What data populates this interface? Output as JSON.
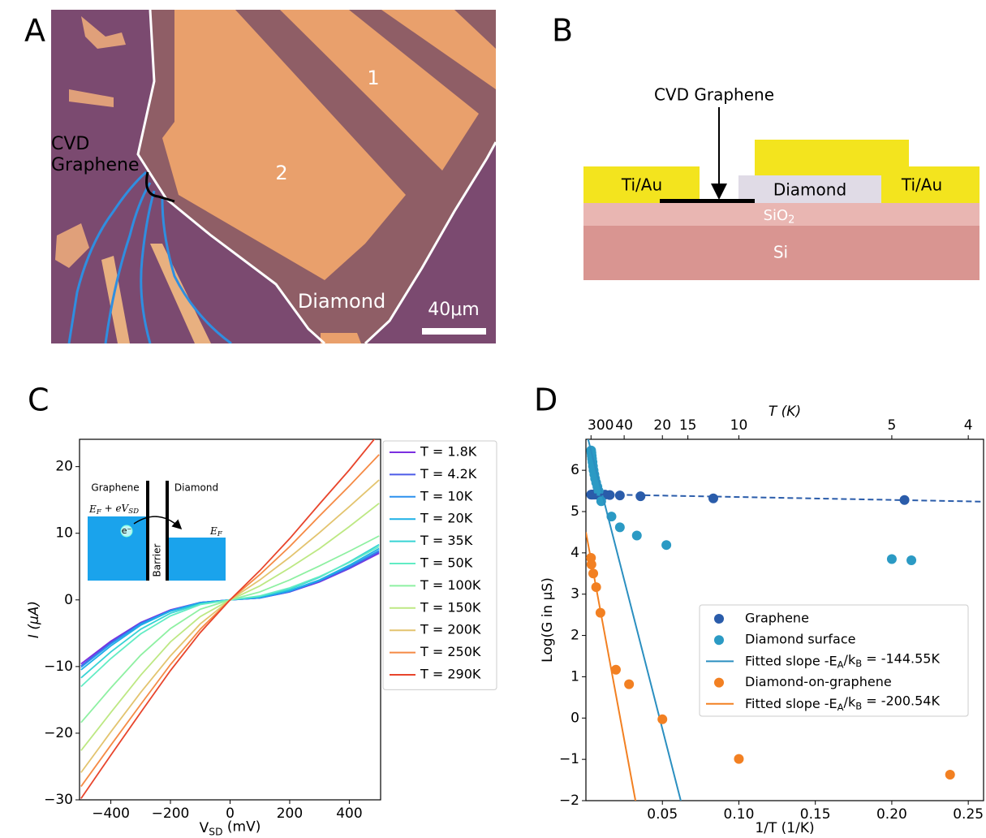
{
  "panel_a": {
    "label": "A",
    "annotation": [
      "CVD",
      "Graphene"
    ],
    "regions": [
      "1",
      "2"
    ],
    "material": "Diamond",
    "scale_bar": "40μm"
  },
  "panel_b": {
    "label": "B",
    "callout": "CVD Graphene",
    "contact_left": "Ti/Au",
    "material": "Diamond",
    "contact_right": "Ti/Au",
    "oxide": [
      "SiO",
      "2"
    ],
    "substrate": "Si"
  },
  "chart_data": [
    {
      "type": "line",
      "label": "C",
      "xlabel": [
        "V",
        "SD",
        " (mV)"
      ],
      "ylabel": "I (μA)",
      "x": [
        -500,
        -400,
        -300,
        -200,
        -100,
        0,
        100,
        200,
        300,
        400,
        500
      ],
      "xlim": [
        -505,
        505
      ],
      "ylim": [
        -30,
        24.1
      ],
      "xticks": [
        {
          "value": -400,
          "label": "−400"
        },
        {
          "value": -200,
          "label": "−200"
        },
        0,
        200,
        400
      ],
      "yticks": [
        {
          "value": -30,
          "label": "−30"
        },
        {
          "value": -20,
          "label": "−20"
        },
        {
          "value": -10,
          "label": "−10"
        },
        0,
        10,
        20
      ],
      "legend": "outside-right",
      "inset": {
        "graphene": "Graphene",
        "diamond": "Diamond",
        "fermi_shifted": [
          "E",
          "F",
          " + eV",
          "SD"
        ],
        "electron": "e⁻",
        "barrier": "Barrier",
        "fermi": [
          "E",
          "F"
        ]
      },
      "series": [
        {
          "name": "T = 1.8K",
          "color": "#7b2fe0",
          "values": [
            -9.6,
            -6.2,
            -3.4,
            -1.5,
            -0.4,
            0,
            0.3,
            1.2,
            2.7,
            4.7,
            7.0
          ]
        },
        {
          "name": "T = 4.2K",
          "color": "#4c5be8",
          "values": [
            -9.9,
            -6.4,
            -3.5,
            -1.6,
            -0.4,
            0,
            0.3,
            1.2,
            2.8,
            4.8,
            7.2
          ]
        },
        {
          "name": "T = 10K",
          "color": "#2c90ee",
          "values": [
            -10.1,
            -6.6,
            -3.6,
            -1.6,
            -0.4,
            0,
            0.3,
            1.3,
            2.9,
            5.0,
            7.4
          ]
        },
        {
          "name": "T = 20K",
          "color": "#1cb0e6",
          "values": [
            -10.5,
            -6.9,
            -3.8,
            -1.7,
            -0.5,
            0,
            0.4,
            1.4,
            3.0,
            5.2,
            7.7
          ]
        },
        {
          "name": "T = 35K",
          "color": "#38d3d4",
          "values": [
            -11.7,
            -7.8,
            -4.4,
            -2.0,
            -0.6,
            0,
            0.5,
            1.6,
            3.4,
            5.7,
            8.3
          ]
        },
        {
          "name": "T = 50K",
          "color": "#62ecc4",
          "values": [
            -13.0,
            -8.8,
            -5.1,
            -2.4,
            -0.7,
            0,
            0.6,
            1.8,
            3.5,
            5.6,
            8.0
          ]
        },
        {
          "name": "T = 100K",
          "color": "#8ef0a2",
          "values": [
            -18.4,
            -13.2,
            -8.3,
            -4.3,
            -1.4,
            0,
            1.2,
            3.0,
            5.1,
            7.3,
            9.6
          ]
        },
        {
          "name": "T = 150K",
          "color": "#bde883",
          "values": [
            -22.6,
            -16.9,
            -11.3,
            -6.3,
            -2.5,
            0,
            2.1,
            4.8,
            7.7,
            11.0,
            14.5
          ]
        },
        {
          "name": "T = 200K",
          "color": "#e3c46f",
          "values": [
            -25.9,
            -19.8,
            -13.9,
            -8.4,
            -3.6,
            0,
            3.0,
            6.4,
            10.1,
            14.0,
            18.0
          ]
        },
        {
          "name": "T = 250K",
          "color": "#f58a45",
          "values": [
            -28.0,
            -21.8,
            -15.7,
            -9.7,
            -4.4,
            0,
            3.8,
            8.0,
            12.6,
            17.1,
            21.8
          ]
        },
        {
          "name": "T = 290K",
          "color": "#e8452c",
          "values": [
            -29.8,
            -23.3,
            -16.9,
            -10.6,
            -4.9,
            0,
            4.4,
            9.2,
            14.4,
            19.5,
            25.0
          ]
        }
      ]
    },
    {
      "type": "scatter",
      "label": "D",
      "xlabel": "1/T (1/K)",
      "ylabel": "Log(G in μS)",
      "x2label": "T (K)",
      "xlim": [
        0,
        0.26
      ],
      "ylim": [
        -2,
        6.75
      ],
      "xticks": [
        0.05,
        {
          "value": 0.1,
          "label": "0.10"
        },
        0.15,
        {
          "value": 0.2,
          "label": "0.20"
        },
        0.25
      ],
      "yticks": [
        {
          "value": -2,
          "label": "−2"
        },
        {
          "value": -1,
          "label": "−1"
        },
        0,
        1,
        2,
        3,
        4,
        5,
        6
      ],
      "x2scale": "reciprocal",
      "x2ticks": [
        300,
        40,
        20,
        15,
        10,
        5,
        4
      ],
      "legend": "center-right",
      "series": [
        {
          "name": "Graphene",
          "color": "#2a5caa",
          "mode": "markers",
          "x": [
            0.0034,
            0.0038,
            0.0042,
            0.0048,
            0.0055,
            0.0063,
            0.0071,
            0.0083,
            0.01,
            0.0125,
            0.0156,
            0.0222,
            0.0357,
            0.0833,
            0.2083
          ],
          "values": [
            5.41,
            5.41,
            5.41,
            5.41,
            5.41,
            5.41,
            5.41,
            5.41,
            5.41,
            5.41,
            5.4,
            5.39,
            5.37,
            5.32,
            5.28
          ]
        },
        {
          "name": "Diamond surface",
          "color": "#2b9ac4",
          "mode": "markers",
          "x": [
            0.0034,
            0.0036,
            0.0038,
            0.004,
            0.0043,
            0.0046,
            0.005,
            0.0055,
            0.006,
            0.0067,
            0.0075,
            0.0083,
            0.01,
            0.0167,
            0.0222,
            0.0333,
            0.0526,
            0.2,
            0.2128
          ],
          "values": [
            6.48,
            6.42,
            6.35,
            6.28,
            6.2,
            6.1,
            6.0,
            5.9,
            5.8,
            5.7,
            5.6,
            5.5,
            5.25,
            4.88,
            4.62,
            4.42,
            4.19,
            3.85,
            3.82
          ]
        },
        {
          "name": [
            "Fitted slope -E",
            "A",
            "/k",
            "B",
            " = -144.55K"
          ],
          "color": "#2b8fc0",
          "mode": "line",
          "x": [
            0,
            0.0625
          ],
          "values": [
            6.96,
            -2.07
          ]
        },
        {
          "name": "Diamond-on-graphene",
          "color": "#f28022",
          "mode": "markers",
          "x": [
            0.0033,
            0.0036,
            0.0048,
            0.0067,
            0.0095,
            0.0196,
            0.0282,
            0.05,
            0.1,
            0.2381
          ],
          "values": [
            3.88,
            3.72,
            3.5,
            3.17,
            2.55,
            1.17,
            0.82,
            -0.03,
            -0.99,
            -1.37
          ]
        },
        {
          "name": [
            "Fitted slope -E",
            "A",
            "/k",
            "B",
            " = -200.54K"
          ],
          "color": "#f28022",
          "mode": "line",
          "x": [
            0,
            0.033
          ],
          "values": [
            4.5,
            -2.12
          ]
        },
        {
          "color": "#2a5caa",
          "mode": "line",
          "style": "dashed",
          "x": [
            0.0034,
            0.26
          ],
          "values": [
            5.42,
            5.24
          ]
        }
      ]
    }
  ]
}
